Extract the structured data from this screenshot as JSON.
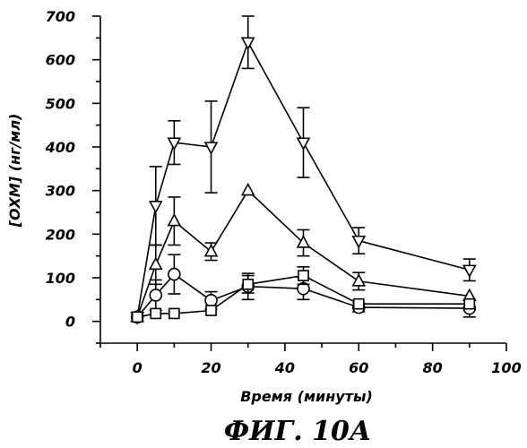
{
  "chart_data": {
    "type": "line",
    "caption": "ФИГ. 10А",
    "xlabel": "Время (минуты)",
    "ylabel": "[ОХМ] (нг/мл)",
    "xlim": [
      -10,
      100
    ],
    "ylim": [
      -50,
      700
    ],
    "x_ticks": [
      0,
      20,
      40,
      60,
      80,
      100
    ],
    "y_ticks": [
      0,
      100,
      200,
      300,
      400,
      500,
      600,
      700
    ],
    "x_tick_labels": [
      "0",
      "20",
      "40",
      "60",
      "80",
      "100"
    ],
    "y_tick_labels": [
      "0",
      "100",
      "200",
      "300",
      "400",
      "500",
      "600",
      "700"
    ],
    "grid": false,
    "series": [
      {
        "marker": "triangle-down",
        "x": [
          0,
          5,
          10,
          20,
          30,
          45,
          60,
          90
        ],
        "y": [
          10,
          265,
          410,
          400,
          640,
          410,
          185,
          118
        ],
        "err": [
          0,
          90,
          50,
          105,
          60,
          80,
          30,
          25
        ]
      },
      {
        "marker": "triangle-up",
        "x": [
          0,
          5,
          10,
          20,
          30,
          45,
          60,
          90
        ],
        "y": [
          10,
          130,
          230,
          160,
          300,
          180,
          92,
          58
        ],
        "err": [
          0,
          45,
          55,
          20,
          0,
          30,
          20,
          0
        ]
      },
      {
        "marker": "circle",
        "x": [
          0,
          5,
          10,
          20,
          30,
          45,
          60,
          90
        ],
        "y": [
          10,
          60,
          108,
          48,
          80,
          75,
          32,
          30
        ],
        "err": [
          0,
          35,
          45,
          20,
          30,
          25,
          10,
          20
        ]
      },
      {
        "marker": "square",
        "x": [
          0,
          5,
          10,
          20,
          30,
          45,
          60,
          90
        ],
        "y": [
          10,
          18,
          18,
          25,
          85,
          105,
          40,
          40
        ],
        "err": [
          0,
          0,
          0,
          0,
          20,
          20,
          0,
          0
        ]
      }
    ]
  }
}
